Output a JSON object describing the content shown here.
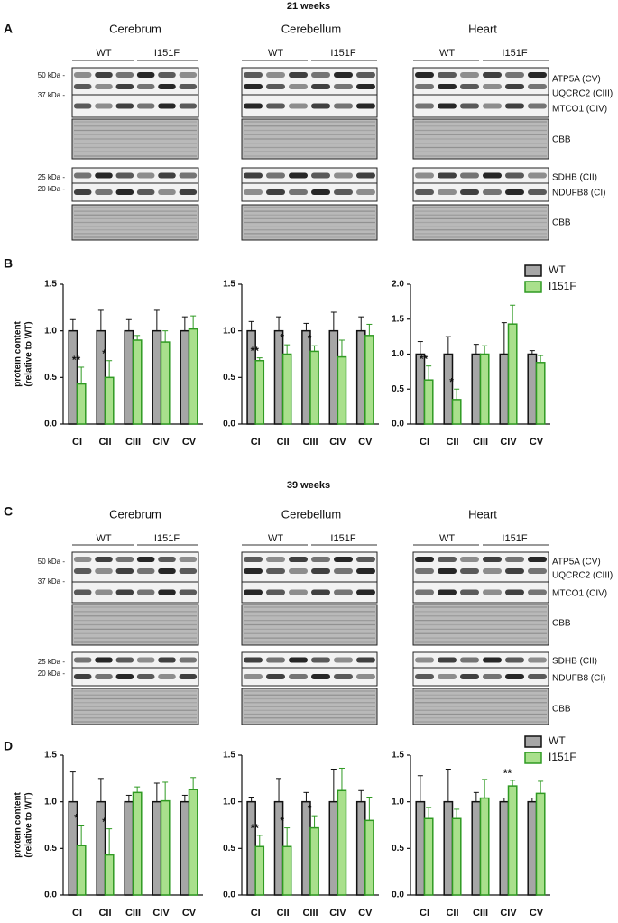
{
  "sections": [
    {
      "title": "21 weeks",
      "blot_letter": "A",
      "chart_letter": "B",
      "tissues": [
        "Cerebrum",
        "Cerebellum",
        "Heart"
      ],
      "groups": [
        "WT",
        "I151F"
      ],
      "markers": [
        "50 kDa -",
        "37 kDa -",
        "25 kDa -",
        "20 kDa -"
      ],
      "proteins": [
        "ATP5A (CV)",
        "UQCRC2 (CIII)",
        "MTCO1 (CIV)",
        "CBB",
        "SDHB (CII)",
        "NDUFB8 (CI)",
        "CBB"
      ]
    },
    {
      "title": "39 weeks",
      "blot_letter": "C",
      "chart_letter": "D",
      "tissues": [
        "Cerebrum",
        "Cerebellum",
        "Heart"
      ],
      "groups": [
        "WT",
        "I151F"
      ],
      "markers": [
        "50 kDa -",
        "37 kDa -",
        "25 kDa -",
        "20 kDa -"
      ],
      "proteins": [
        "ATP5A (CV)",
        "UQCRC2 (CIII)",
        "MTCO1 (CIV)",
        "CBB",
        "SDHB (CII)",
        "NDUFB8 (CI)",
        "CBB"
      ]
    }
  ],
  "chart_data": [
    {
      "type": "bar",
      "ylabel": [
        "protein content",
        "(relative to WT)"
      ],
      "categories": [
        "CI",
        "CII",
        "CIII",
        "CIV",
        "CV"
      ],
      "ylim": [
        0,
        1.5
      ],
      "yticks": [
        {
          "value": 0,
          "label": "0.0"
        },
        0.5,
        {
          "value": 1,
          "label": "1.0"
        },
        1.5
      ],
      "series": [
        {
          "color": "#a6a6a6",
          "edge_color": "#111111",
          "values": [
            1,
            1,
            1,
            1,
            1
          ],
          "errors": [
            0.12,
            0.22,
            0.12,
            0.22,
            0.15
          ]
        },
        {
          "color": "#a9e08c",
          "edge_color": "#2f9a22",
          "values": [
            0.43,
            0.5,
            0.9,
            0.88,
            1.02
          ],
          "errors": [
            0.18,
            0.18,
            0.05,
            0.12,
            0.14
          ]
        }
      ],
      "annotations": [
        {
          "text": "**",
          "category": "CI"
        },
        {
          "text": "*",
          "category": "CII"
        }
      ]
    },
    {
      "type": "bar",
      "categories": [
        "CI",
        "CII",
        "CIII",
        "CIV",
        "CV"
      ],
      "ylim": [
        0,
        1.5
      ],
      "yticks": [
        {
          "value": 0,
          "label": "0.0"
        },
        0.5,
        {
          "value": 1,
          "label": "1.0"
        },
        1.5
      ],
      "series": [
        {
          "color": "#a6a6a6",
          "edge_color": "#111111",
          "values": [
            1,
            1,
            1,
            1,
            1
          ],
          "errors": [
            0.1,
            0.15,
            0.08,
            0.2,
            0.15
          ]
        },
        {
          "color": "#a9e08c",
          "edge_color": "#2f9a22",
          "values": [
            0.68,
            0.75,
            0.78,
            0.72,
            0.95
          ],
          "errors": [
            0.03,
            0.1,
            0.06,
            0.18,
            0.12
          ]
        }
      ],
      "annotations": [
        {
          "text": "**",
          "category": "CI"
        },
        {
          "text": "*",
          "category": "CII"
        },
        {
          "text": "*",
          "category": "CIII"
        }
      ]
    },
    {
      "type": "bar",
      "legend": "top-right",
      "categories": [
        "CI",
        "CII",
        "CIII",
        "CIV",
        "CV"
      ],
      "ylim": [
        0,
        2
      ],
      "yticks": [
        {
          "value": 0,
          "label": "0.0"
        },
        0.5,
        {
          "value": 1,
          "label": "1.0"
        },
        1.5,
        {
          "value": 2,
          "label": "2.0"
        }
      ],
      "series": [
        {
          "name": "WT",
          "color": "#a6a6a6",
          "edge_color": "#111111",
          "values": [
            1,
            1,
            1,
            1,
            1
          ],
          "errors": [
            0.18,
            0.25,
            0.14,
            0.45,
            0.05
          ]
        },
        {
          "name": "I151F",
          "color": "#a9e08c",
          "edge_color": "#2f9a22",
          "values": [
            0.63,
            0.35,
            1,
            1.43,
            0.88
          ],
          "errors": [
            0.2,
            0.15,
            0.12,
            0.27,
            0.1
          ]
        }
      ],
      "annotations": [
        {
          "text": "**",
          "category": "CI"
        },
        {
          "text": "*",
          "category": "CII"
        }
      ]
    },
    {
      "type": "bar",
      "ylabel": [
        "protein content",
        "(relative to WT)"
      ],
      "categories": [
        "CI",
        "CII",
        "CIII",
        "CIV",
        "CV"
      ],
      "ylim": [
        0,
        1.5
      ],
      "yticks": [
        {
          "value": 0,
          "label": "0.0"
        },
        0.5,
        {
          "value": 1,
          "label": "1.0"
        },
        1.5
      ],
      "series": [
        {
          "color": "#a6a6a6",
          "edge_color": "#111111",
          "values": [
            1,
            1,
            1,
            1,
            1
          ],
          "errors": [
            0.32,
            0.25,
            0.07,
            0.2,
            0.07
          ]
        },
        {
          "color": "#a9e08c",
          "edge_color": "#2f9a22",
          "values": [
            0.53,
            0.43,
            1.1,
            1.01,
            1.13
          ],
          "errors": [
            0.22,
            0.28,
            0.06,
            0.2,
            0.13
          ]
        }
      ],
      "annotations": [
        {
          "text": "*",
          "category": "CI"
        },
        {
          "text": "*",
          "category": "CII"
        }
      ]
    },
    {
      "type": "bar",
      "categories": [
        "CI",
        "CII",
        "CIII",
        "CIV",
        "CV"
      ],
      "ylim": [
        0,
        1.5
      ],
      "yticks": [
        {
          "value": 0,
          "label": "0.0"
        },
        0.5,
        {
          "value": 1,
          "label": "1.0"
        },
        1.5
      ],
      "series": [
        {
          "color": "#a6a6a6",
          "edge_color": "#111111",
          "values": [
            1,
            1,
            1,
            1,
            1
          ],
          "errors": [
            0.05,
            0.25,
            0.1,
            0.35,
            0.12
          ]
        },
        {
          "color": "#a9e08c",
          "edge_color": "#2f9a22",
          "values": [
            0.52,
            0.52,
            0.72,
            1.12,
            0.8
          ],
          "errors": [
            0.12,
            0.2,
            0.13,
            0.24,
            0.25
          ]
        }
      ],
      "annotations": [
        {
          "text": "**",
          "category": "CI"
        },
        {
          "text": "*",
          "category": "CII"
        },
        {
          "text": "*",
          "category": "CIII"
        }
      ]
    },
    {
      "type": "bar",
      "legend": "top-right",
      "categories": [
        "CI",
        "CII",
        "CIII",
        "CIV",
        "CV"
      ],
      "ylim": [
        0,
        1.5
      ],
      "yticks": [
        {
          "value": 0,
          "label": "0.0"
        },
        0.5,
        {
          "value": 1,
          "label": "1.0"
        },
        1.5
      ],
      "series": [
        {
          "name": "WT",
          "color": "#a6a6a6",
          "edge_color": "#111111",
          "values": [
            1,
            1,
            1,
            1,
            1
          ],
          "errors": [
            0.28,
            0.35,
            0.1,
            0.04,
            0.04
          ]
        },
        {
          "name": "I151F",
          "color": "#a9e08c",
          "edge_color": "#2f9a22",
          "values": [
            0.82,
            0.82,
            1.04,
            1.17,
            1.09
          ],
          "errors": [
            0.12,
            0.1,
            0.2,
            0.06,
            0.13
          ]
        }
      ],
      "annotations": [
        {
          "text": "**",
          "category": "CIV"
        }
      ]
    }
  ]
}
